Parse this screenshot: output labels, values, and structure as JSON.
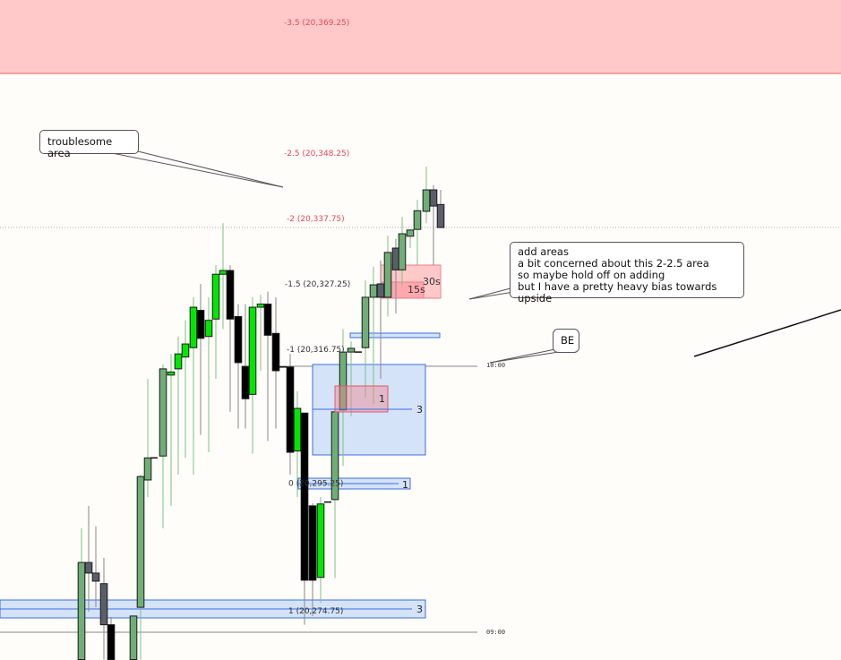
{
  "colors": {
    "up_sage": "#6fae77",
    "up_bright": "#00e600",
    "down_black": "#000000",
    "down_gray": "#5b5e69",
    "zone_red": "#ffc9c9",
    "zone_blue": "#d4e3f7",
    "blue_line": "#3b6ee8",
    "red_label": "#e8485a"
  },
  "chart_data": {
    "type": "candlestick",
    "price_range": [
      20266.75,
      20371
    ],
    "candles": [
      {
        "o": 20266.9,
        "c": 20282.5,
        "h": 20288,
        "l": 20266.9,
        "s": "sage"
      },
      {
        "o": 20282.5,
        "c": 20280.8,
        "h": 20291.6,
        "l": 20274.6,
        "s": "gray"
      },
      {
        "o": 20280.8,
        "c": 20279.5,
        "h": 20288.3,
        "l": 20275.3,
        "s": "gray"
      },
      {
        "o": 20279.1,
        "c": 20272.5,
        "h": 20283.25,
        "l": 20266.9,
        "s": "gray"
      },
      {
        "o": 20272.5,
        "c": 20266.9,
        "h": 20273.75,
        "l": 20266.9,
        "s": "black"
      },
      {
        "o": 20266.9,
        "c": 20273.9,
        "h": 20273.9,
        "l": 20266.9,
        "s": "sage"
      },
      {
        "o": 20275.3,
        "c": 20296.3,
        "h": 20296.6,
        "l": 20266.9,
        "s": "sage"
      },
      {
        "o": 20295.75,
        "c": 20299.3,
        "h": 20312,
        "l": 20293,
        "s": "sage"
      },
      {
        "o": 20299.3,
        "c": 20299.3,
        "h": 20299.3,
        "l": 20299.3,
        "s": "black"
      },
      {
        "o": 20299.6,
        "c": 20313.6,
        "h": 20314.3,
        "l": 20288,
        "s": "sage"
      },
      {
        "o": 20312.6,
        "c": 20313.1,
        "h": 20316,
        "l": 20291.6,
        "s": "bright"
      },
      {
        "o": 20313.6,
        "c": 20316,
        "h": 20318.8,
        "l": 20296.6,
        "s": "bright"
      },
      {
        "o": 20315.5,
        "c": 20317.6,
        "h": 20321.4,
        "l": 20299.3,
        "s": "bright"
      },
      {
        "o": 20317,
        "c": 20323.5,
        "h": 20325.1,
        "l": 20296.6,
        "s": "bright"
      },
      {
        "o": 20323,
        "c": 20318.5,
        "h": 20327.25,
        "l": 20303,
        "s": "black"
      },
      {
        "o": 20318.8,
        "c": 20321.4,
        "h": 20325.1,
        "l": 20300.2,
        "s": "bright"
      },
      {
        "o": 20321.6,
        "c": 20328.8,
        "h": 20330.25,
        "l": 20312,
        "s": "bright"
      },
      {
        "o": 20328.8,
        "c": 20329.4,
        "h": 20337,
        "l": 20320,
        "s": "bright"
      },
      {
        "o": 20329.4,
        "c": 20321.6,
        "h": 20330.25,
        "l": 20306.7,
        "s": "black"
      },
      {
        "o": 20322,
        "c": 20314.6,
        "h": 20324,
        "l": 20304,
        "s": "black"
      },
      {
        "o": 20314,
        "c": 20308.8,
        "h": 20324,
        "l": 20304,
        "s": "black"
      },
      {
        "o": 20309.5,
        "c": 20323.5,
        "h": 20325.1,
        "l": 20300,
        "s": "bright"
      },
      {
        "o": 20323.5,
        "c": 20324,
        "h": 20325.5,
        "l": 20313.3,
        "s": "bright"
      },
      {
        "o": 20324,
        "c": 20319,
        "h": 20326,
        "l": 20302,
        "s": "black"
      },
      {
        "o": 20319.3,
        "c": 20313.3,
        "h": 20325.1,
        "l": 20304,
        "s": "black"
      },
      {
        "o": 20313.9,
        "c": 20313.9,
        "h": 20313.9,
        "l": 20313.9,
        "s": "black"
      },
      {
        "o": 20313.9,
        "c": 20300.2,
        "h": 20316,
        "l": 20296.6,
        "s": "black"
      },
      {
        "o": 20300.4,
        "c": 20307.25,
        "h": 20310,
        "l": 20293,
        "s": "bright"
      },
      {
        "o": 20306.5,
        "c": 20279.65,
        "h": 20306.5,
        "l": 20272.5,
        "s": "black"
      },
      {
        "o": 20291.6,
        "c": 20279.65,
        "h": 20292,
        "l": 20273.9,
        "s": "black"
      },
      {
        "o": 20280.1,
        "c": 20291.9,
        "h": 20293,
        "l": 20276,
        "s": "bright"
      },
      {
        "o": 20292.2,
        "c": 20292.2,
        "h": 20292.2,
        "l": 20292.2,
        "s": "black"
      },
      {
        "o": 20292.6,
        "c": 20306.7,
        "h": 20306.7,
        "l": 20280,
        "s": "sage"
      },
      {
        "o": 20307,
        "c": 20316.3,
        "h": 20320,
        "l": 20298,
        "s": "sage"
      },
      {
        "o": 20316.3,
        "c": 20316.9,
        "h": 20318,
        "l": 20306,
        "s": "sage"
      },
      {
        "o": 20316.3,
        "c": 20316.3,
        "h": 20316.3,
        "l": 20316.3,
        "s": "black"
      },
      {
        "o": 20317,
        "c": 20325.1,
        "h": 20327.8,
        "l": 20309,
        "s": "sage"
      },
      {
        "o": 20325.1,
        "c": 20327.1,
        "h": 20330,
        "l": 20308,
        "s": "sage"
      },
      {
        "o": 20327.25,
        "c": 20325.1,
        "h": 20331,
        "l": 20312,
        "s": "gray"
      },
      {
        "o": 20325.1,
        "c": 20332.3,
        "h": 20335,
        "l": 20322,
        "s": "sage"
      },
      {
        "o": 20333,
        "c": 20329.5,
        "h": 20334.5,
        "l": 20322.5,
        "s": "gray"
      },
      {
        "o": 20329.5,
        "c": 20335.3,
        "h": 20338,
        "l": 20327,
        "s": "sage"
      },
      {
        "o": 20334.9,
        "c": 20335.9,
        "h": 20336,
        "l": 20333,
        "s": "sage"
      },
      {
        "o": 20336,
        "c": 20339,
        "h": 20340.75,
        "l": 20330.25,
        "s": "sage"
      },
      {
        "o": 20338.9,
        "c": 20342.35,
        "h": 20346.1,
        "l": 20337,
        "s": "sage"
      },
      {
        "o": 20342.35,
        "c": 20339.75,
        "h": 20343.1,
        "l": 20330.25,
        "s": "gray"
      },
      {
        "o": 20340,
        "c": 20336.3,
        "h": 20342.35,
        "l": 20336.3,
        "s": "gray"
      }
    ],
    "fib_levels": [
      {
        "label": "-3.5 (20,369.25)",
        "price": 20369.25,
        "color": "red"
      },
      {
        "label": "-2.5 (20,348.25)",
        "price": 20348.25,
        "color": "red"
      },
      {
        "label": "-2 (20,337.75)",
        "price": 20337.75,
        "color": "red"
      },
      {
        "label": "-1.5 (20,327.25)",
        "price": 20327.25,
        "color": "dark"
      },
      {
        "label": "-1 (20,316.75)",
        "price": 20316.75,
        "color": "dark"
      },
      {
        "label": "0 (20,295.25)",
        "price": 20295.25,
        "color": "dark"
      },
      {
        "label": "1 (20,274.75)",
        "price": 20274.75,
        "color": "dark"
      }
    ],
    "time_labels": [
      "10:00",
      "09:00"
    ],
    "box_labels": {
      "red_small": "1",
      "big_blue": "3",
      "blue_mid": "1",
      "blue_bottom": "3",
      "red_30s": "30s",
      "red_15s": "15s"
    }
  },
  "notes": {
    "troublesome": "troublesome area",
    "add_areas": [
      "add areas",
      "a bit concerned about this 2-2.5 area",
      "so maybe hold off on adding",
      "but I have a pretty heavy bias towards upside"
    ],
    "be": "BE"
  }
}
